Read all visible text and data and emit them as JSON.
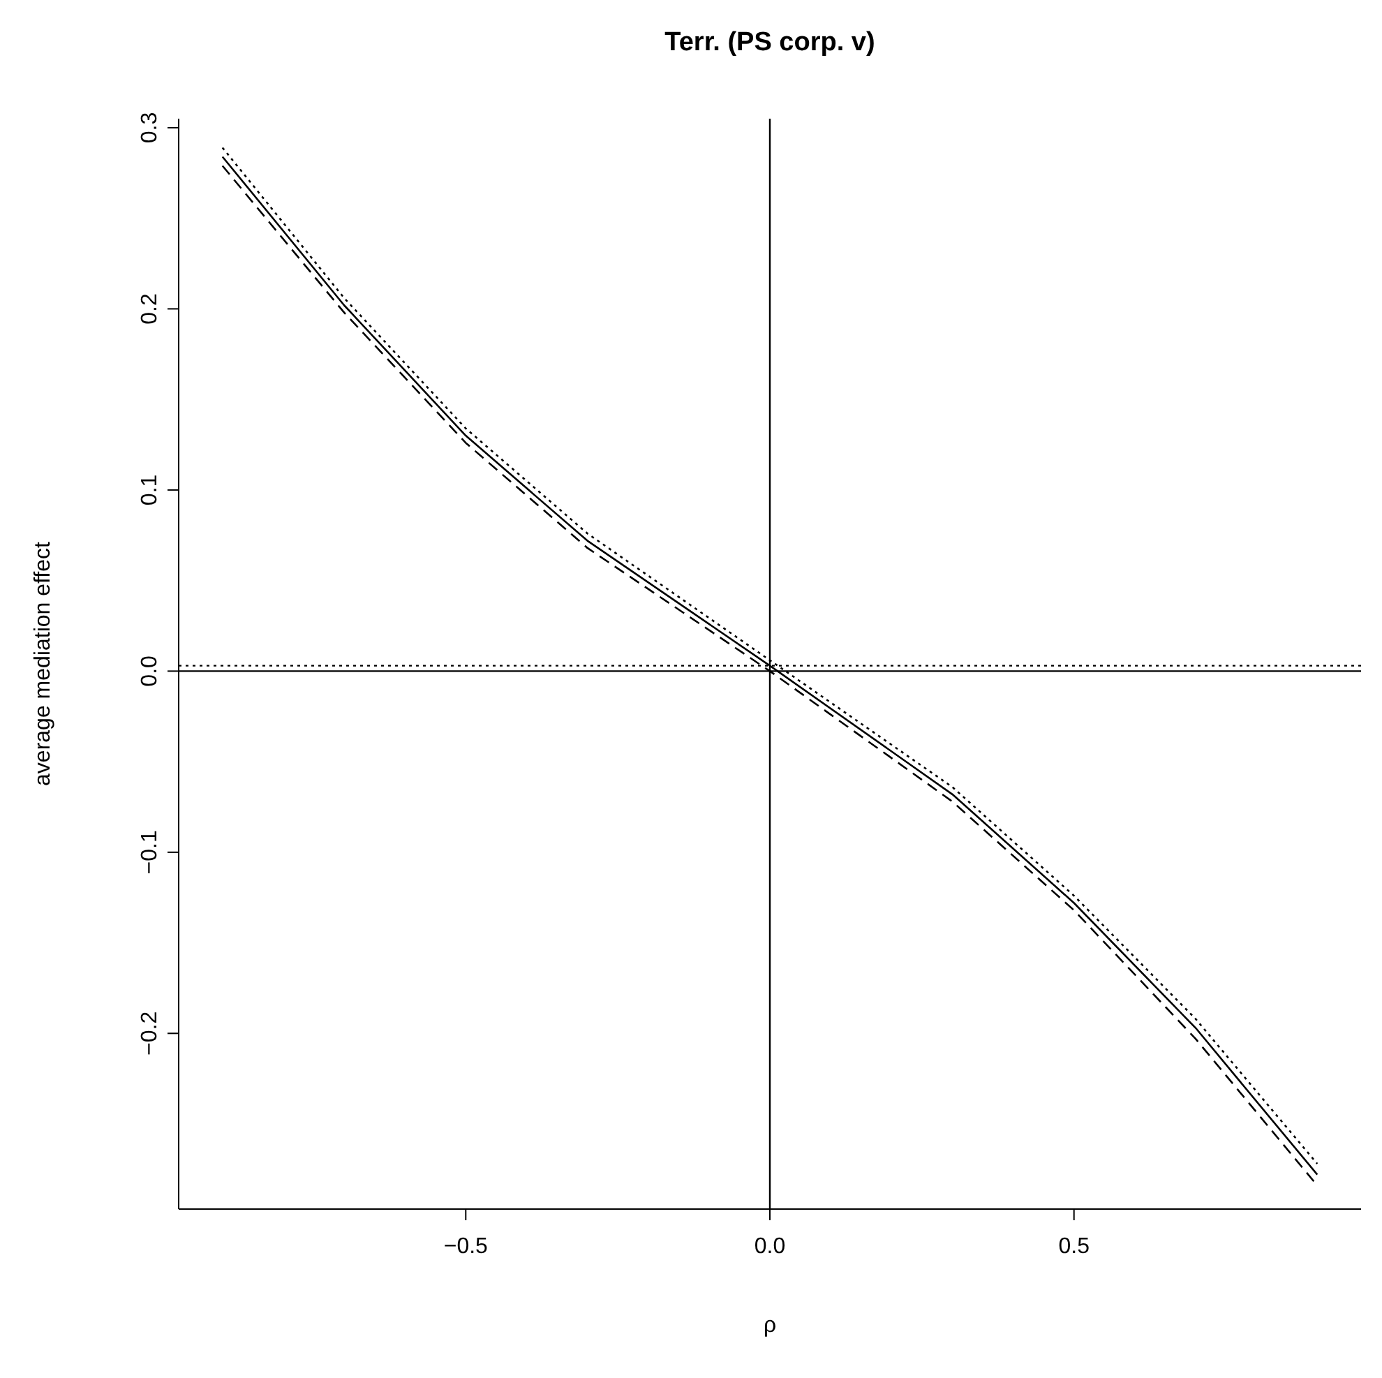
{
  "chart_data": {
    "type": "line",
    "title": "Terr. (PS corp. v)",
    "xlabel": "ρ",
    "ylabel": "average mediation effect",
    "xlim": [
      -0.972,
      0.972
    ],
    "ylim": [
      -0.297,
      0.305
    ],
    "xticks": [
      {
        "value": -0.5,
        "label": "−0.5"
      },
      {
        "value": 0,
        "label": "0.0"
      },
      {
        "value": 0.5,
        "label": "0.5"
      }
    ],
    "yticks": [
      {
        "value": -0.2,
        "label": "−0.2"
      },
      {
        "value": -0.1,
        "label": "−0.1"
      },
      {
        "value": 0,
        "label": "0.0"
      },
      {
        "value": 0.1,
        "label": "0.1"
      },
      {
        "value": 0.2,
        "label": "0.2"
      },
      {
        "value": 0.3,
        "label": "0.3"
      }
    ],
    "marker": "none",
    "series": [
      {
        "color": "#000000",
        "line_style": "solid",
        "x": [
          -0.9,
          -0.7,
          -0.5,
          -0.3,
          0,
          0.3,
          0.5,
          0.7,
          0.9
        ],
        "values": [
          0.284,
          0.202,
          0.13,
          0.072,
          0.003,
          -0.068,
          -0.128,
          -0.197,
          -0.278
        ]
      },
      {
        "color": "#000000",
        "line_style": "dashed",
        "x": [
          -0.9,
          -0.7,
          -0.5,
          -0.3,
          0,
          0.3,
          0.5,
          0.7,
          0.9
        ],
        "values": [
          0.279,
          0.198,
          0.126,
          0.068,
          0.0,
          -0.072,
          -0.132,
          -0.203,
          -0.284
        ]
      },
      {
        "color": "#000000",
        "line_style": "dotted",
        "x": [
          -0.9,
          -0.7,
          -0.5,
          -0.3,
          0,
          0.3,
          0.5,
          0.7,
          0.9
        ],
        "values": [
          0.289,
          0.206,
          0.134,
          0.076,
          0.006,
          -0.064,
          -0.124,
          -0.192,
          -0.272
        ]
      }
    ],
    "ref_lines": [
      {
        "axis": "y",
        "value": 0,
        "color": "#000000",
        "line_style": "solid"
      },
      {
        "axis": "x",
        "value": 0,
        "color": "#000000",
        "line_style": "solid"
      },
      {
        "axis": "y",
        "value": 0.003,
        "color": "#000000",
        "line_style": "dotted"
      }
    ]
  }
}
